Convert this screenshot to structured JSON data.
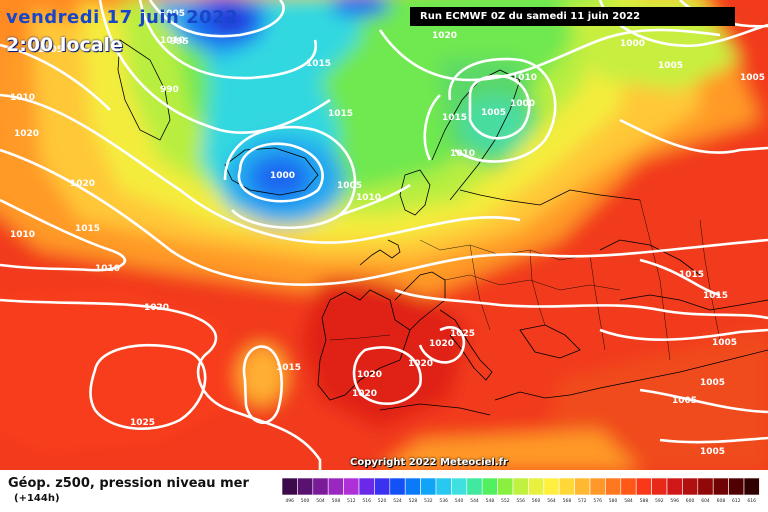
{
  "header": {
    "date": "vendredi 17 juin 2022",
    "time": "2:00 locale",
    "run": "Run ECMWF 0Z du samedi 11 juin 2022"
  },
  "footer": {
    "title": "Géop. z500, pression niveau mer",
    "subtitle": "(+144h)",
    "copyright": "Copyright 2022 Meteociel.fr"
  },
  "isobar_labels": [
    "1005",
    "1010",
    "995",
    "990",
    "1015",
    "1015",
    "1020",
    "1020",
    "1010",
    "1015",
    "1010",
    "1000",
    "1005",
    "1010",
    "1015",
    "1005",
    "1000",
    "1010",
    "1020",
    "1010",
    "1000",
    "1005",
    "1020",
    "1015",
    "1020",
    "1025",
    "1020",
    "1020",
    "1020",
    "1025",
    "1015",
    "1015",
    "1010",
    "1005",
    "1005",
    "1005",
    "1005",
    "1005",
    "1005"
  ],
  "colorbar": {
    "labels": [
      "496",
      "500",
      "504",
      "508",
      "512",
      "516",
      "520",
      "524",
      "528",
      "532",
      "536",
      "540",
      "544",
      "548",
      "552",
      "556",
      "560",
      "564",
      "568",
      "572",
      "576",
      "580",
      "584",
      "588",
      "592",
      "596",
      "600",
      "604",
      "608",
      "612",
      "616"
    ],
    "colors": [
      "#3c0a4a",
      "#5a1270",
      "#7a1c98",
      "#9a28c0",
      "#b030d8",
      "#6a28e8",
      "#3a32f0",
      "#1450f8",
      "#0a7af8",
      "#10a4f8",
      "#28c8f0",
      "#40e0e0",
      "#40e8a0",
      "#50f060",
      "#8af040",
      "#c0f040",
      "#e8f040",
      "#fff040",
      "#ffd838",
      "#ffb830",
      "#ff9828",
      "#ff7820",
      "#ff5818",
      "#f83818",
      "#e82818",
      "#d01818",
      "#b01010",
      "#900808",
      "#700404",
      "#500000",
      "#300000"
    ]
  }
}
